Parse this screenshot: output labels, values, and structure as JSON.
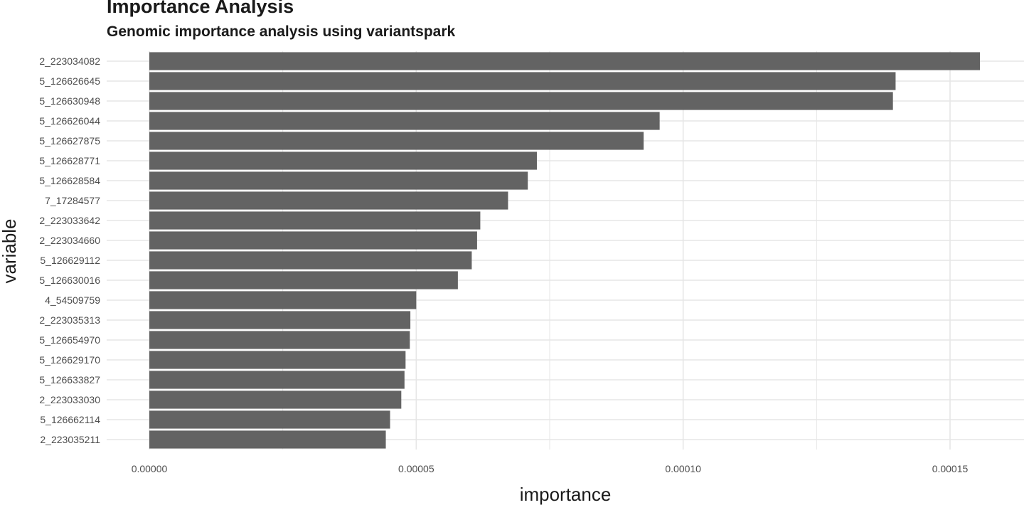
{
  "chart_data": {
    "type": "bar",
    "orientation": "horizontal",
    "title": "Importance Analysis",
    "subtitle": "Genomic importance analysis using variantspark",
    "xlabel": "importance",
    "ylabel": "variable",
    "xlim": [
      0,
      0.00016
    ],
    "x_ticks": [
      "0.00000",
      "0.00005",
      "0.00010",
      "0.00015"
    ],
    "x_tick_values": [
      0,
      5e-05,
      0.0001,
      0.00015
    ],
    "grid": true,
    "bar_color": "#636363",
    "grid_color": "#e6e6e6",
    "categories": [
      "2_223034082",
      "5_126626645",
      "5_126630948",
      "5_126626044",
      "5_126627875",
      "5_126628771",
      "5_126628584",
      "7_17284577",
      "2_223033642",
      "2_223034660",
      "5_126629112",
      "5_126630016",
      "4_54509759",
      "2_223035313",
      "5_126654970",
      "5_126629170",
      "5_126633827",
      "2_223033030",
      "5_126662114",
      "2_223035211"
    ],
    "values": [
      0.0001556,
      0.0001398,
      0.0001393,
      9.56e-05,
      9.26e-05,
      7.26e-05,
      7.09e-05,
      6.72e-05,
      6.2e-05,
      6.14e-05,
      6.04e-05,
      5.78e-05,
      5e-05,
      4.89e-05,
      4.88e-05,
      4.8e-05,
      4.78e-05,
      4.72e-05,
      4.51e-05,
      4.43e-05
    ]
  }
}
